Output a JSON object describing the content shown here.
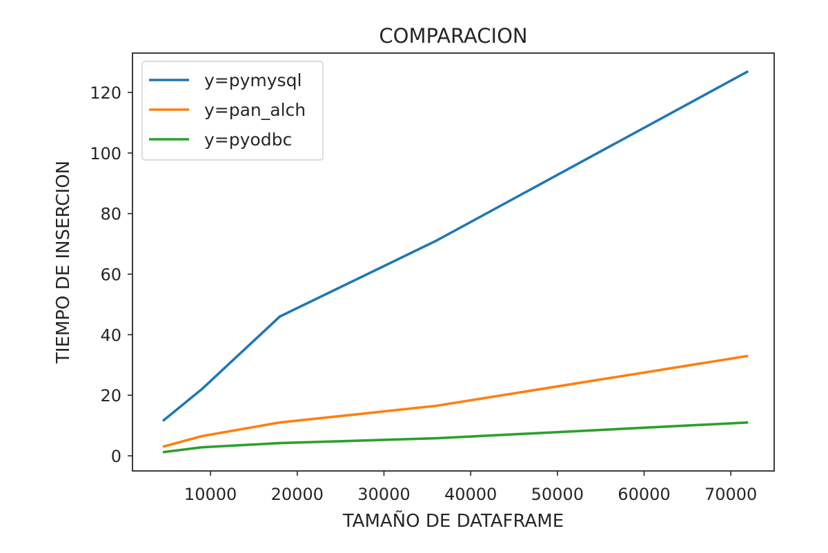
{
  "chart_data": {
    "type": "line",
    "title": "COMPARACION",
    "xlabel": "TAMAÑO DE DATAFRAME",
    "ylabel": "TIEMPO DE INSERCION",
    "xlim": [
      1000,
      75000
    ],
    "ylim": [
      -5,
      133
    ],
    "xticks": [
      10000,
      20000,
      30000,
      40000,
      50000,
      60000,
      70000
    ],
    "yticks": [
      0,
      20,
      40,
      60,
      80,
      100,
      120
    ],
    "grid": false,
    "legend_position": "top-left",
    "x": [
      4500,
      9000,
      18000,
      36000,
      72000
    ],
    "series": [
      {
        "name": "y=pymysql",
        "color": "#1f77b4",
        "values": [
          11.5,
          22,
          46,
          71,
          127
        ]
      },
      {
        "name": "y=pan_alch",
        "color": "#ff7f0e",
        "values": [
          3,
          6.5,
          11,
          16.5,
          33
        ]
      },
      {
        "name": "y=pyodbc",
        "color": "#2ca02c",
        "values": [
          1.2,
          2.8,
          4.2,
          5.8,
          11
        ]
      }
    ]
  }
}
